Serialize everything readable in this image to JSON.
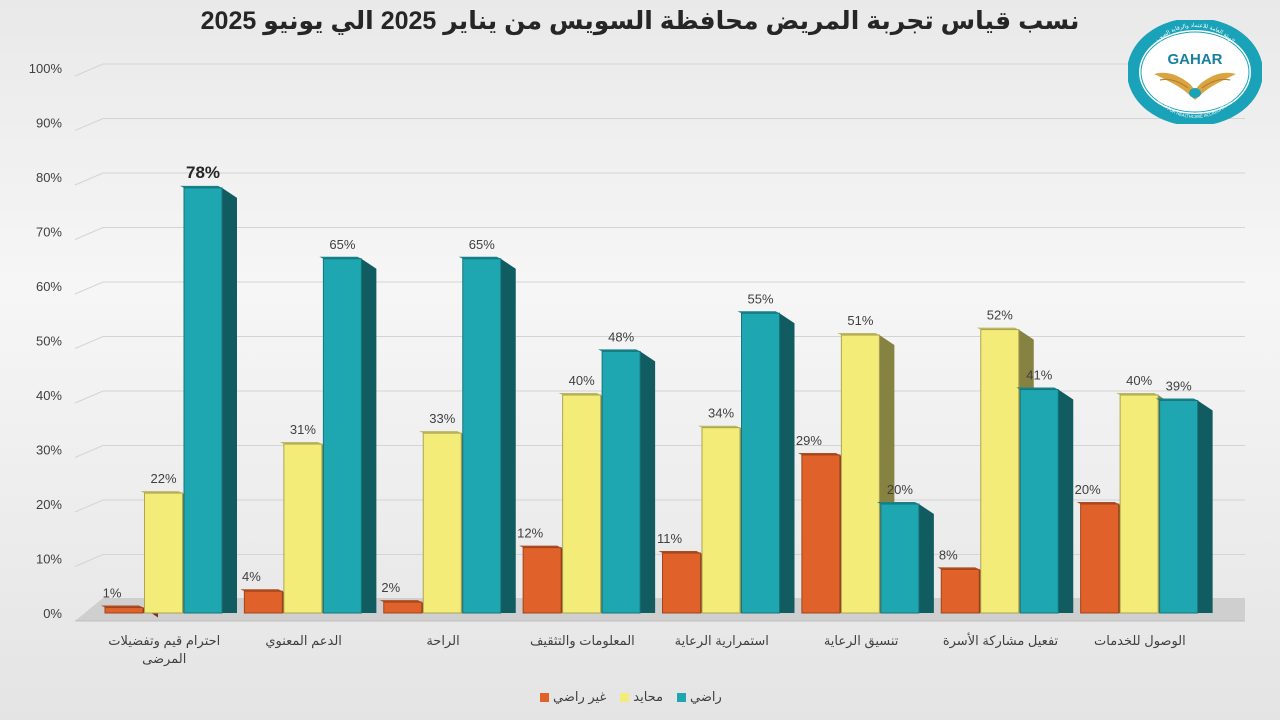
{
  "chart_data": {
    "type": "bar",
    "title": "نسب قياس تجربة المريض محافظة السويس من يناير 2025 الي يونيو 2025",
    "y_ticks": [
      "0%",
      "10%",
      "20%",
      "30%",
      "40%",
      "50%",
      "60%",
      "70%",
      "80%",
      "90%",
      "100%"
    ],
    "ylim": [
      0,
      100
    ],
    "grid": true,
    "legend_position": "bottom",
    "categories": [
      "احترام قيم وتفضيلات المرضى",
      "الدعم المعنوي",
      "الراحة",
      "المعلومات والتثقيف",
      "استمرارية الرعاية",
      "تنسيق الرعاية",
      "تفعيل مشاركة الأسرة",
      "الوصول للخدمات"
    ],
    "series": [
      {
        "name": "غير راضي",
        "color": "#e0622a",
        "values": [
          1,
          4,
          2,
          12,
          11,
          29,
          8,
          20
        ],
        "labels": [
          "1%",
          "4%",
          "2%",
          "12%",
          "11%",
          "29%",
          "8%",
          "20%"
        ]
      },
      {
        "name": "محايد",
        "color": "#f4ec78",
        "values": [
          22,
          31,
          33,
          40,
          34,
          51,
          52,
          40
        ],
        "labels": [
          "22%",
          "31%",
          "33%",
          "40%",
          "34%",
          "51%",
          "52%",
          "40%"
        ]
      },
      {
        "name": "راضي",
        "color": "#1fa7b1",
        "values": [
          78,
          65,
          65,
          48,
          55,
          20,
          41,
          39
        ],
        "labels": [
          "78%",
          "65%",
          "65%",
          "48%",
          "55%",
          "20%",
          "41%",
          "39%"
        ]
      }
    ]
  },
  "logo": {
    "text": "GAHAR",
    "arc_top": "الهيئة العامة للاعتماد والرقابة الصحية",
    "arc_bottom": "GENERAL AUTHORITY FOR HEALTHCARE ACCREDITATION & REGULATION",
    "icon": "eagle-icon",
    "ring_color": "#1aa3b8"
  }
}
